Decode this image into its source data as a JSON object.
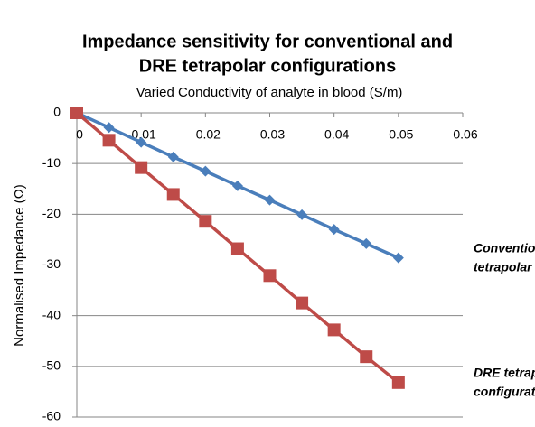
{
  "chart_data": {
    "type": "line",
    "title": [
      "Impedance sensitivity for conventional and",
      "DRE tetrapolar configurations"
    ],
    "x_label": "Varied Conductivity of analyte in blood (S/m)",
    "y_label": "Normalised Impedance (Ω)",
    "x": [
      0,
      0.005,
      0.01,
      0.015,
      0.02,
      0.025,
      0.03,
      0.035,
      0.04,
      0.045,
      0.05
    ],
    "series": [
      {
        "color": "#4a7ebb",
        "marker": "diamond",
        "values": [
          0,
          -2.9,
          -5.8,
          -8.7,
          -11.5,
          -14.4,
          -17.2,
          -20.1,
          -23,
          -25.8,
          -28.6
        ],
        "annotation": [
          "Conventional",
          "tetrapolar config."
        ]
      },
      {
        "color": "#be4b48",
        "marker": "square",
        "values": [
          0,
          -5.4,
          -10.8,
          -16.1,
          -21.4,
          -26.8,
          -32.1,
          -37.5,
          -42.8,
          -48.1,
          -53.2
        ],
        "annotation": [
          "DRE tetrapolar",
          "configuration"
        ]
      }
    ],
    "xlim": [
      0,
      0.06
    ],
    "xticks": [
      0,
      0.01,
      0.02,
      0.03,
      0.04,
      0.05,
      0.06
    ],
    "ylim": [
      -60,
      0
    ],
    "yticks": [
      0,
      -10,
      -20,
      -30,
      -40,
      -50,
      -60
    ],
    "grid": true
  }
}
